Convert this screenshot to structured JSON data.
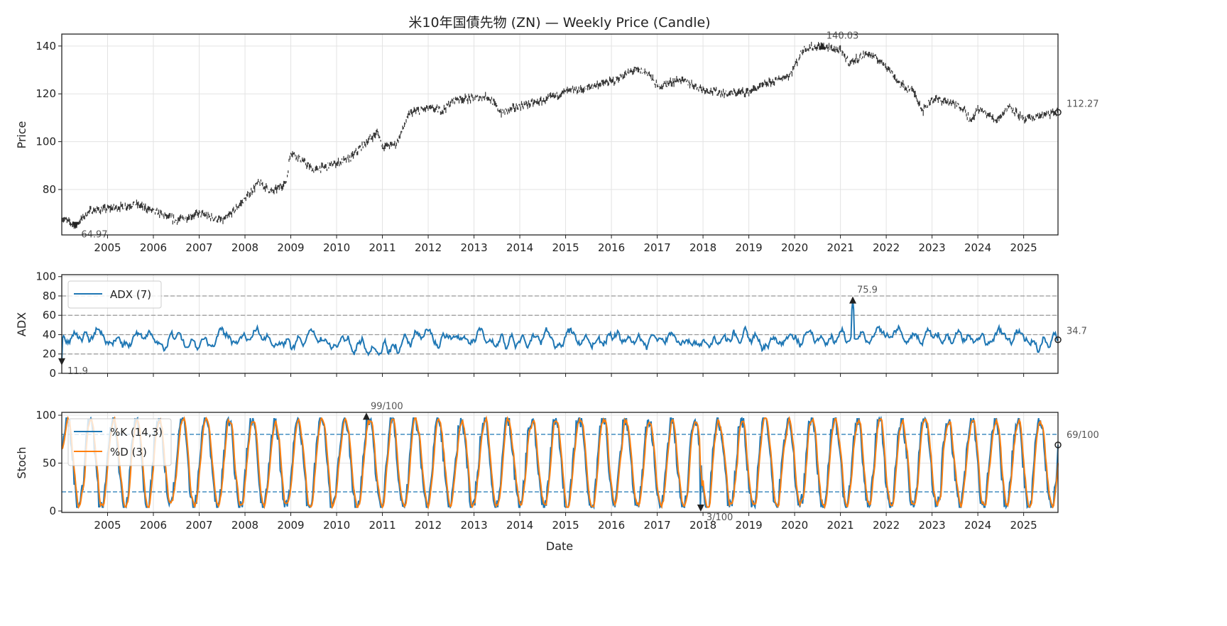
{
  "chart_data": [
    {
      "type": "line",
      "subtype": "candlestick",
      "title": "米10年国債先物 (ZN) — Weekly Price (Candle)",
      "xlabel": "",
      "ylabel": "Price",
      "xlim": [
        2004.0,
        2025.75
      ],
      "ylim": [
        61,
        145
      ],
      "yticks": [
        80,
        100,
        120,
        140
      ],
      "xticks": [
        2005,
        2006,
        2007,
        2008,
        2009,
        2010,
        2011,
        2012,
        2013,
        2014,
        2015,
        2016,
        2017,
        2018,
        2019,
        2020,
        2021,
        2022,
        2023,
        2024,
        2025
      ],
      "grid": true,
      "series": [
        {
          "name": "Price",
          "color": "#333333",
          "x": [
            2004.0,
            2004.3,
            2004.6,
            2005.0,
            2005.4,
            2005.6,
            2006.0,
            2006.5,
            2007.0,
            2007.5,
            2007.6,
            2008.0,
            2008.3,
            2008.6,
            2008.9,
            2009.0,
            2009.5,
            2010.0,
            2010.3,
            2010.6,
            2010.9,
            2011.0,
            2011.3,
            2011.6,
            2012.0,
            2012.3,
            2012.6,
            2013.0,
            2013.3,
            2013.6,
            2014.0,
            2014.5,
            2015.0,
            2015.4,
            2015.7,
            2016.0,
            2016.5,
            2016.8,
            2017.0,
            2017.5,
            2018.0,
            2018.5,
            2019.0,
            2019.5,
            2019.9,
            2020.2,
            2020.6,
            2021.0,
            2021.2,
            2021.6,
            2022.0,
            2022.3,
            2022.6,
            2022.8,
            2023.0,
            2023.3,
            2023.7,
            2023.85,
            2024.0,
            2024.4,
            2024.7,
            2025.0,
            2025.4,
            2025.75
          ],
          "y": [
            68,
            65,
            71,
            72,
            73,
            74,
            71,
            67,
            70,
            67,
            68,
            76,
            83,
            79,
            83,
            96,
            88,
            91,
            93,
            99,
            104,
            98,
            99,
            112,
            114,
            113,
            118,
            118,
            119,
            112,
            115,
            117,
            121,
            122,
            124,
            125,
            130,
            129,
            123,
            126,
            122,
            120,
            121,
            125,
            128,
            139,
            140,
            138,
            133,
            137,
            132,
            124,
            121,
            113,
            118,
            117,
            114,
            108,
            114,
            109,
            115,
            109,
            111,
            112.27
          ]
        }
      ],
      "annotations": [
        {
          "label": "140.03",
          "x": 2020.6,
          "y": 140.03,
          "marker": "max"
        },
        {
          "label": "64.97",
          "x": 2004.3,
          "y": 64.97,
          "marker": "min"
        },
        {
          "label": "112.27",
          "x": 2025.75,
          "y": 112.27,
          "marker": "last"
        }
      ]
    },
    {
      "type": "line",
      "title": "",
      "ylabel": "ADX",
      "xlim": [
        2004.0,
        2025.75
      ],
      "ylim": [
        0,
        102
      ],
      "yticks": [
        0,
        20,
        40,
        60,
        80,
        100
      ],
      "hlines": [
        20,
        40,
        60,
        80
      ],
      "grid": true,
      "legend": {
        "entries": [
          "ADX (7)"
        ],
        "placement": "top-left"
      },
      "series": [
        {
          "name": "ADX (7)",
          "color": "#1f77b4",
          "mean": 35,
          "min": 11.9,
          "max": 75.9
        }
      ],
      "annotations": [
        {
          "label": "75.9",
          "x": 2021.27,
          "y": 75.9,
          "marker": "max"
        },
        {
          "label": "11.9",
          "x": 2004.0,
          "y": 11.9,
          "marker": "min"
        },
        {
          "label": "34.7",
          "x": 2025.75,
          "y": 34.7,
          "marker": "last"
        }
      ]
    },
    {
      "type": "line",
      "title": "",
      "xlabel": "Date",
      "ylabel": "Stoch",
      "xlim": [
        2004.0,
        2025.75
      ],
      "ylim": [
        -1.5,
        103
      ],
      "yticks": [
        0,
        50,
        100
      ],
      "hlines": [
        20,
        80
      ],
      "grid": true,
      "legend": {
        "entries": [
          "%K (14,3)",
          "%D (3)"
        ],
        "placement": "top-left"
      },
      "series": [
        {
          "name": "%K (14,3)",
          "color": "#1f77b4"
        },
        {
          "name": "%D (3)",
          "color": "#ff7f0e"
        }
      ],
      "annotations": [
        {
          "label": "99/100",
          "x": 2010.65,
          "y": 99,
          "marker": "max"
        },
        {
          "label": "3/100",
          "x": 2017.95,
          "y": 3,
          "marker": "min"
        },
        {
          "label": "69/100",
          "x": 2025.75,
          "y": 69,
          "marker": "last"
        }
      ]
    }
  ]
}
